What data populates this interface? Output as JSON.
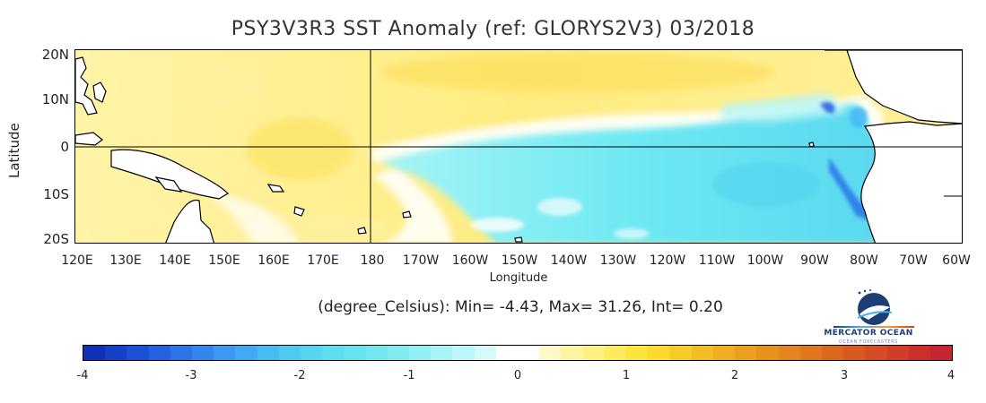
{
  "title": "PSY3V3R3 SST Anomaly (ref: GLORYS2V3) 03/2018",
  "axes": {
    "latitude_label": "Latitude",
    "longitude_label": "Longitude",
    "lat_ticks": [
      "20N",
      "10N",
      "0",
      "10S",
      "20S"
    ],
    "lon_ticks": [
      "120E",
      "130E",
      "140E",
      "150E",
      "160E",
      "170E",
      "180",
      "170W",
      "160W",
      "150W",
      "140W",
      "130W",
      "120W",
      "110W",
      "100W",
      "90W",
      "80W",
      "70W",
      "60W"
    ]
  },
  "stats_text": "(degree_Celsius): Min= -4.43, Max= 31.26, Int= 0.20",
  "colorbar": {
    "ticks": [
      "-4",
      "-3",
      "-2",
      "-1",
      "0",
      "1",
      "2",
      "3",
      "4"
    ],
    "colors": [
      "#1030b8",
      "#1640c8",
      "#1c50d6",
      "#2462e0",
      "#2c74e8",
      "#3486ee",
      "#3c98f2",
      "#42aaf4",
      "#48baf4",
      "#4ecaf2",
      "#54d6f0",
      "#5cdeee",
      "#66e4ee",
      "#72e8ee",
      "#80ecf0",
      "#92f0f4",
      "#a6f4f6",
      "#bcf6f8",
      "#d4fafa",
      "#ffffff",
      "#ffffff",
      "#fff8c8",
      "#fff4a0",
      "#fff080",
      "#ffea60",
      "#ffe440",
      "#fcda30",
      "#f8cc28",
      "#f4bc24",
      "#f0ac22",
      "#eca020",
      "#e8921e",
      "#e4841e",
      "#e0761e",
      "#dc681e",
      "#d85a20",
      "#d44c24",
      "#d03e28",
      "#cc302c",
      "#c62630"
    ]
  },
  "logo": {
    "name": "MERCATOR OCEAN",
    "tagline": "OCEAN FORECASTERS"
  },
  "colors": {
    "warm": "#fff0a0",
    "cool": "#6ee8f2",
    "land": "#ffffff"
  }
}
